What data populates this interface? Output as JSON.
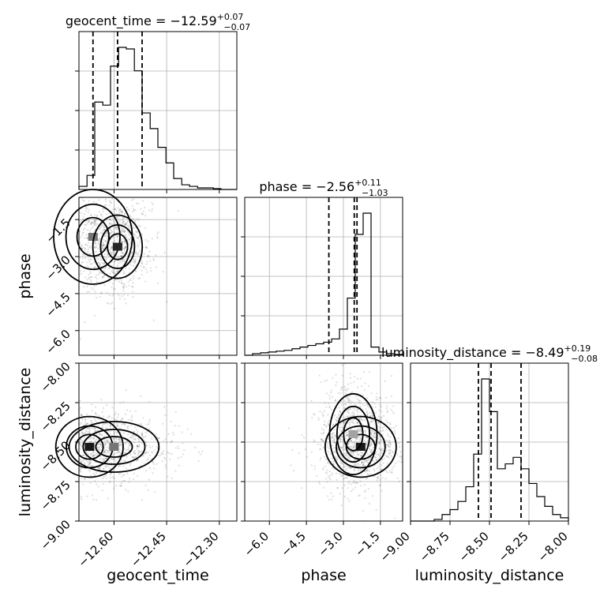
{
  "chart_data": {
    "type": "corner",
    "parameters": [
      "geocent_time",
      "phase",
      "luminosity_distance"
    ],
    "titles": [
      {
        "param": "geocent_time",
        "label": "geocent_time = ",
        "median": "−12.59",
        "upper": "+0.07",
        "lower": "−0.07"
      },
      {
        "param": "phase",
        "label": "phase = ",
        "median": "−2.56",
        "upper": "+0.11",
        "lower": "−1.03"
      },
      {
        "param": "luminosity_distance",
        "label": "luminosity_distance = ",
        "median": "−8.49",
        "upper": "+0.19",
        "lower": "−0.08"
      }
    ],
    "axis_labels": {
      "geocent_time": "geocent_time",
      "phase": "phase",
      "luminosity_distance": "luminosity_distance"
    },
    "ranges": {
      "geocent_time": [
        -12.7,
        -12.25
      ],
      "phase": [
        -7.0,
        -0.6
      ],
      "luminosity_distance": [
        -9.0,
        -8.0
      ]
    },
    "ticks": {
      "geocent_time": {
        "values": [
          -12.6,
          -12.45,
          -12.3
        ],
        "labels": [
          "−12.60",
          "−12.45",
          "−12.30"
        ]
      },
      "phase": {
        "values": [
          -6.0,
          -4.5,
          -3.0,
          -1.5
        ],
        "labels": [
          "−6.0",
          "−4.5",
          "−3.0",
          "−1.5"
        ]
      },
      "luminosity_distance": {
        "values": [
          -9.0,
          -8.75,
          -8.5,
          -8.25,
          -8.0
        ],
        "labels": [
          "−9.00",
          "−8.75",
          "−8.50",
          "−8.25",
          "−8.00"
        ]
      }
    },
    "quantiles": {
      "geocent_time": [
        -12.66,
        -12.59,
        -12.52
      ],
      "phase": [
        -3.59,
        -2.56,
        -2.45
      ],
      "luminosity_distance": [
        -8.57,
        -8.49,
        -8.3
      ]
    },
    "histograms": {
      "geocent_time": {
        "edges": [
          -12.7,
          -12.677,
          -12.655,
          -12.632,
          -12.61,
          -12.587,
          -12.565,
          -12.542,
          -12.52,
          -12.497,
          -12.475,
          -12.452,
          -12.43,
          -12.407,
          -12.385,
          -12.362,
          -12.34,
          -12.317,
          -12.295,
          -12.272,
          -12.25
        ],
        "counts": [
          0.02,
          0.09,
          0.56,
          0.54,
          0.79,
          0.91,
          0.9,
          0.76,
          0.49,
          0.39,
          0.27,
          0.17,
          0.07,
          0.03,
          0.02,
          0.01,
          0.01,
          0.005,
          0,
          0
        ]
      },
      "phase": {
        "edges": [
          -7.0,
          -6.68,
          -6.36,
          -6.04,
          -5.72,
          -5.4,
          -5.08,
          -4.76,
          -4.44,
          -4.12,
          -3.8,
          -3.48,
          -3.16,
          -2.84,
          -2.52,
          -2.2,
          -1.88,
          -1.56,
          -1.24,
          -0.92,
          -0.6
        ],
        "counts": [
          0,
          0.01,
          0.015,
          0.02,
          0.025,
          0.03,
          0.04,
          0.05,
          0.06,
          0.07,
          0.08,
          0.1,
          0.16,
          0.35,
          0.74,
          0.87,
          0.05,
          0.02,
          0.01,
          0.005
        ]
      },
      "luminosity_distance": {
        "edges": [
          -9.0,
          -8.95,
          -8.9,
          -8.85,
          -8.8,
          -8.75,
          -8.7,
          -8.65,
          -8.6,
          -8.55,
          -8.5,
          -8.45,
          -8.4,
          -8.35,
          -8.3,
          -8.25,
          -8.2,
          -8.15,
          -8.1,
          -8.05,
          -8.0
        ],
        "counts": [
          0,
          0,
          0,
          0.01,
          0.04,
          0.07,
          0.12,
          0.21,
          0.41,
          0.87,
          0.67,
          0.32,
          0.35,
          0.39,
          0.32,
          0.23,
          0.15,
          0.09,
          0.04,
          0.02
        ]
      }
    },
    "peaks": {
      "geocent_time_vs_phase": [
        {
          "x": -12.66,
          "y": -2.2,
          "w": 0.035,
          "h": 0.6,
          "level": 0.6
        },
        {
          "x": -12.59,
          "y": -2.6,
          "w": 0.022,
          "h": 0.4,
          "level": 0.95
        }
      ],
      "geocent_time_vs_luminosity_distance": [
        {
          "x": -12.67,
          "y": -8.53,
          "w": 0.03,
          "h": 0.06,
          "level": 1.0
        },
        {
          "x": -12.6,
          "y": -8.53,
          "w": 0.04,
          "h": 0.05,
          "level": 0.6
        }
      ],
      "phase_vs_luminosity_distance": [
        {
          "x": -2.3,
          "y": -8.53,
          "w": 0.45,
          "h": 0.06,
          "level": 1.0
        },
        {
          "x": -2.6,
          "y": -8.45,
          "w": 0.3,
          "h": 0.08,
          "level": 0.4
        }
      ]
    }
  }
}
